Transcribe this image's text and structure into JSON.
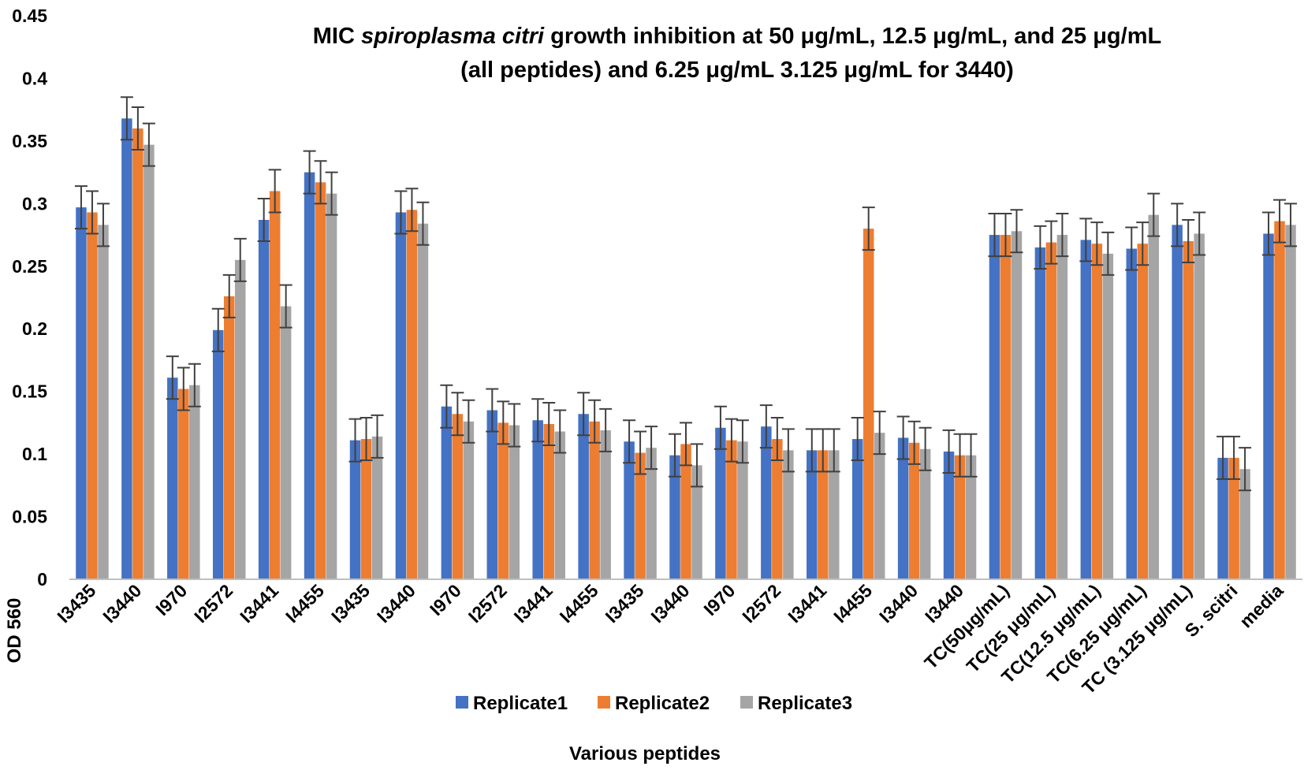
{
  "chart_data": {
    "type": "bar",
    "title": {
      "prefix": "MIC ",
      "italic": "spiroplasma citri",
      "suffix": " growth inhibition at 50 μg/mL, 12.5 μg/mL, and 25 μg/mL",
      "line2": "(all peptides) and 6.25 μg/mL 3.125 μg/mL for 3440)"
    },
    "xlabel": "Various peptides",
    "ylabel": "OD 560",
    "ylim": [
      0,
      0.45
    ],
    "yticks": [
      0,
      0.05,
      0.1,
      0.15,
      0.2,
      0.25,
      0.3,
      0.35,
      0.4,
      0.45
    ],
    "ytick_labels": [
      "0",
      "0.05",
      "0.1",
      "0.15",
      "0.2",
      "0.25",
      "0.3",
      "0.35",
      "0.4",
      "0.45"
    ],
    "categories": [
      "I3435",
      "I3440",
      "I970",
      "I2572",
      "I3441",
      "I4455",
      "I3435",
      "I3440",
      "I970",
      "I2572",
      "I3441",
      "I4455",
      "I3435",
      "I3440",
      "I970",
      "I2572",
      "I3441",
      "I4455",
      "I3440",
      "I3440",
      "TC(50μg/mL)",
      "TC(25 μg/mL)",
      "TC(12.5 μg/mL)",
      "TC(6.25 μg/mL)",
      "TC (3.125 μg/mL)",
      "S. scitri",
      "media"
    ],
    "error": 0.017,
    "legend_position": "bottom",
    "series": [
      {
        "name": "Replicate1",
        "color": "#4472C4",
        "values": [
          0.297,
          0.368,
          0.161,
          0.199,
          0.287,
          0.325,
          0.111,
          0.293,
          0.138,
          0.135,
          0.127,
          0.132,
          0.11,
          0.099,
          0.121,
          0.122,
          0.103,
          0.112,
          0.113,
          0.102,
          0.275,
          0.265,
          0.271,
          0.264,
          0.283,
          0.097,
          0.276
        ]
      },
      {
        "name": "Replicate2",
        "color": "#ED7D31",
        "values": [
          0.293,
          0.36,
          0.152,
          0.226,
          0.31,
          0.317,
          0.112,
          0.295,
          0.132,
          0.125,
          0.124,
          0.126,
          0.101,
          0.108,
          0.111,
          0.112,
          0.103,
          0.28,
          0.109,
          0.099,
          0.275,
          0.269,
          0.268,
          0.268,
          0.27,
          0.097,
          0.286
        ]
      },
      {
        "name": "Replicate3",
        "color": "#A5A5A5",
        "values": [
          0.283,
          0.347,
          0.155,
          0.255,
          0.218,
          0.308,
          0.114,
          0.284,
          0.126,
          0.123,
          0.118,
          0.119,
          0.105,
          0.091,
          0.11,
          0.103,
          0.103,
          0.117,
          0.104,
          0.099,
          0.278,
          0.275,
          0.26,
          0.291,
          0.276,
          0.088,
          0.283
        ]
      }
    ]
  }
}
